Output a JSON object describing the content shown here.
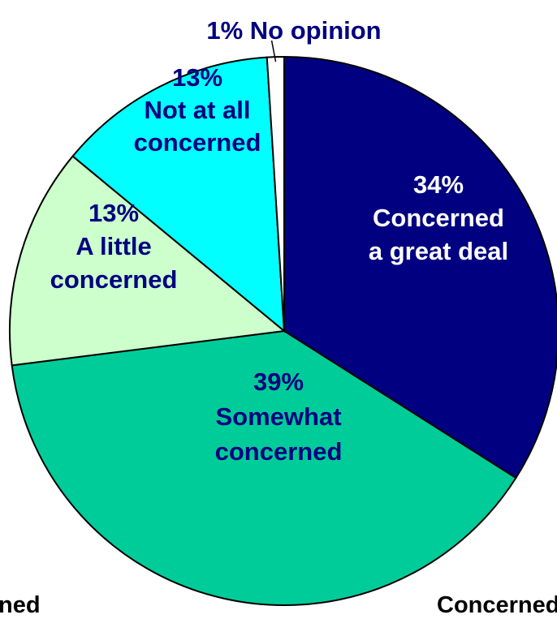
{
  "chart_data": {
    "type": "pie",
    "title": "",
    "slices": [
      {
        "name": "Concerned a great deal",
        "value": 34,
        "color": "#000080",
        "label_lines": [
          "34%",
          "Concerned",
          "a great deal"
        ],
        "label_color": "#ffffff"
      },
      {
        "name": "Somewhat concerned",
        "value": 39,
        "color": "#00cc99",
        "label_lines": [
          "39%",
          "Somewhat",
          "concerned"
        ],
        "label_color": "#000080"
      },
      {
        "name": "A little concerned",
        "value": 13,
        "color": "#ccffcc",
        "label_lines": [
          "13%",
          "A little",
          "concerned"
        ],
        "label_color": "#000080"
      },
      {
        "name": "Not at all concerned",
        "value": 13,
        "color": "#00ffff",
        "label_lines": [
          "13%",
          "Not at all",
          "concerned"
        ],
        "label_color": "#000080"
      },
      {
        "name": "No opinion",
        "value": 1,
        "color": "#ffffff",
        "label_lines": [
          "1% No opinion"
        ],
        "label_color": "#000080"
      }
    ]
  },
  "footer": {
    "left_text": "ned",
    "right_text": "Concerned"
  }
}
